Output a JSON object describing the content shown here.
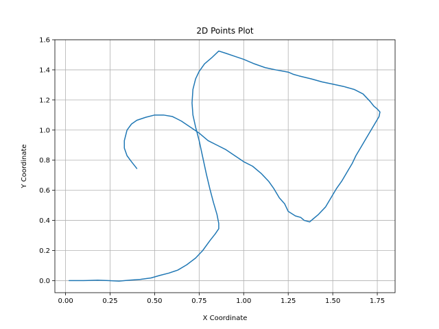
{
  "chart_data": {
    "type": "line",
    "title": "2D Points Plot",
    "xlabel": "X Coordinate",
    "ylabel": "Y Coordinate",
    "xlim": [
      -0.06,
      1.85
    ],
    "ylim": [
      -0.08,
      1.6
    ],
    "xticks": [
      0.0,
      0.25,
      0.5,
      0.75,
      1.0,
      1.25,
      1.5,
      1.75
    ],
    "xtick_labels": [
      "0.00",
      "0.25",
      "0.50",
      "0.75",
      "1.00",
      "1.25",
      "1.50",
      "1.75"
    ],
    "yticks": [
      0.0,
      0.2,
      0.4,
      0.6,
      0.8,
      1.0,
      1.2,
      1.4,
      1.6
    ],
    "ytick_labels": [
      "0.0",
      "0.2",
      "0.4",
      "0.6",
      "0.8",
      "1.0",
      "1.2",
      "1.4",
      "1.6"
    ],
    "grid": true,
    "series": [
      {
        "color": "#1f77b4",
        "x": [
          0.02,
          0.1,
          0.18,
          0.24,
          0.3,
          0.36,
          0.42,
          0.48,
          0.53,
          0.58,
          0.63,
          0.68,
          0.73,
          0.77,
          0.81,
          0.84,
          0.86,
          0.86,
          0.85,
          0.83,
          0.81,
          0.79,
          0.77,
          0.75,
          0.73,
          0.715,
          0.71,
          0.715,
          0.73,
          0.75,
          0.78,
          0.82,
          0.86,
          0.9,
          0.95,
          1.0,
          1.06,
          1.12,
          1.18,
          1.25,
          1.28,
          1.31,
          1.38,
          1.44,
          1.5,
          1.56,
          1.62,
          1.67,
          1.71,
          1.73,
          1.75,
          1.765,
          1.76,
          1.745,
          1.72,
          1.69,
          1.66,
          1.63,
          1.61,
          1.58,
          1.55,
          1.52,
          1.49,
          1.46,
          1.42,
          1.39,
          1.37,
          1.34,
          1.32,
          1.29,
          1.25,
          1.23,
          1.2,
          1.17,
          1.14,
          1.1,
          1.05,
          1.0,
          0.95,
          0.9,
          0.85,
          0.8,
          0.75,
          0.7,
          0.65,
          0.6,
          0.55,
          0.5,
          0.45,
          0.4,
          0.37,
          0.345,
          0.33,
          0.33,
          0.345,
          0.37,
          0.4
        ],
        "y": [
          0.0,
          0.0,
          0.003,
          0.0,
          -0.003,
          0.003,
          0.008,
          0.018,
          0.035,
          0.05,
          0.07,
          0.105,
          0.15,
          0.2,
          0.265,
          0.31,
          0.345,
          0.38,
          0.44,
          0.52,
          0.61,
          0.71,
          0.82,
          0.93,
          1.02,
          1.1,
          1.18,
          1.27,
          1.34,
          1.39,
          1.44,
          1.48,
          1.525,
          1.51,
          1.49,
          1.47,
          1.44,
          1.415,
          1.4,
          1.385,
          1.37,
          1.36,
          1.34,
          1.32,
          1.305,
          1.29,
          1.27,
          1.24,
          1.19,
          1.16,
          1.14,
          1.12,
          1.09,
          1.06,
          1.01,
          0.95,
          0.89,
          0.83,
          0.78,
          0.72,
          0.66,
          0.61,
          0.55,
          0.49,
          0.44,
          0.41,
          0.39,
          0.4,
          0.42,
          0.43,
          0.46,
          0.51,
          0.55,
          0.61,
          0.66,
          0.71,
          0.76,
          0.79,
          0.83,
          0.87,
          0.9,
          0.93,
          0.98,
          1.02,
          1.06,
          1.09,
          1.1,
          1.1,
          1.085,
          1.065,
          1.04,
          1.0,
          0.93,
          0.88,
          0.83,
          0.79,
          0.745
        ]
      }
    ]
  }
}
